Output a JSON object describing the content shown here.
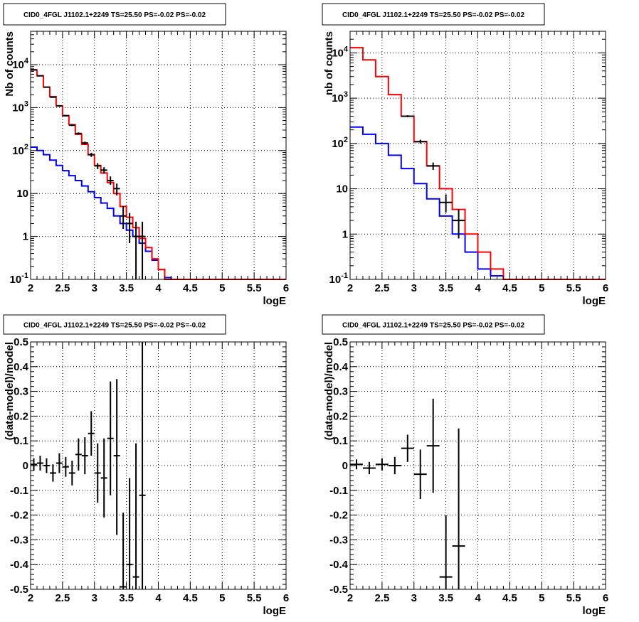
{
  "colors": {
    "data": "#000000",
    "total_model": "#ff0000",
    "component_model": "#0000ff",
    "grid": "#000000"
  },
  "chart_data": [
    {
      "type": "line",
      "title": "CID0_4FGL J1102.1+2249 TS=25.50 PS=-0.02 PS=-0.02",
      "xlabel": "logE",
      "ylabel": "Nb of counts",
      "xlim": [
        2,
        6
      ],
      "ylim": [
        0.1,
        60000
      ],
      "yscale": "log",
      "grid": true,
      "x_ticks": [
        "2",
        "2.5",
        "3",
        "3.5",
        "4",
        "4.5",
        "5",
        "5.5",
        "6"
      ],
      "y_ticks": [
        "10^-1",
        "1",
        "10",
        "10^2",
        "10^3",
        "10^4"
      ],
      "bin_edges": [
        2.0,
        2.1,
        2.2,
        2.3,
        2.4,
        2.5,
        2.6,
        2.7,
        2.8,
        2.9,
        3.0,
        3.1,
        3.2,
        3.3,
        3.4,
        3.5,
        3.6,
        3.7,
        3.8,
        3.9,
        4.0,
        4.1,
        4.2,
        4.3,
        4.4,
        4.5,
        4.6,
        4.7,
        4.8,
        4.9,
        5.0,
        5.1,
        5.2,
        5.3,
        5.4,
        5.5,
        5.6,
        5.7,
        5.8,
        5.9,
        6.0
      ],
      "series": [
        {
          "values": [
            7500,
            5500,
            3000,
            1800,
            1100,
            650,
            400,
            240,
            140,
            80,
            45,
            30,
            18,
            10,
            5,
            2.8,
            1.6,
            0.9,
            0.55,
            0.3,
            0.17,
            0.1,
            0.1,
            0.1,
            0.1,
            0.1,
            0.1,
            0.1,
            0.1,
            0.1,
            0.1,
            0.1,
            0.1,
            0.1,
            0.1,
            0.1,
            0.1,
            0.1,
            0.1,
            0.1
          ]
        },
        {
          "values": [
            120,
            100,
            80,
            60,
            45,
            34,
            26,
            20,
            15,
            11,
            8,
            6,
            4.5,
            3,
            2,
            1.4,
            1.0,
            0.7,
            0.45,
            0.28,
            0.17,
            0.11,
            0.1,
            0.1,
            0.1,
            0.1,
            0.1,
            0.1,
            0.1,
            0.1,
            0.1,
            0.1,
            0.1,
            0.1,
            0.1,
            0.1,
            0.1,
            0.1,
            0.1,
            0.1
          ]
        }
      ],
      "points": [
        {
          "x": 2.05,
          "y": 7600,
          "ylo": 7500,
          "yhi": 7700
        },
        {
          "x": 2.15,
          "y": 5500,
          "ylo": 5400,
          "yhi": 5600
        },
        {
          "x": 2.25,
          "y": 3000,
          "ylo": 2940,
          "yhi": 3060
        },
        {
          "x": 2.35,
          "y": 1750,
          "ylo": 1700,
          "yhi": 1800
        },
        {
          "x": 2.45,
          "y": 1100,
          "ylo": 1070,
          "yhi": 1130
        },
        {
          "x": 2.55,
          "y": 650,
          "ylo": 625,
          "yhi": 675
        },
        {
          "x": 2.65,
          "y": 390,
          "ylo": 370,
          "yhi": 410
        },
        {
          "x": 2.75,
          "y": 250,
          "ylo": 235,
          "yhi": 265
        },
        {
          "x": 2.85,
          "y": 150,
          "ylo": 138,
          "yhi": 162
        },
        {
          "x": 2.95,
          "y": 80,
          "ylo": 71,
          "yhi": 89
        },
        {
          "x": 3.05,
          "y": 44,
          "ylo": 37,
          "yhi": 51
        },
        {
          "x": 3.15,
          "y": 35,
          "ylo": 29,
          "yhi": 41
        },
        {
          "x": 3.25,
          "y": 20,
          "ylo": 16,
          "yhi": 25
        },
        {
          "x": 3.35,
          "y": 13,
          "ylo": 9,
          "yhi": 17
        },
        {
          "x": 3.45,
          "y": 3,
          "ylo": 1.5,
          "yhi": 5
        },
        {
          "x": 3.55,
          "y": 2,
          "ylo": 0.7,
          "yhi": 3.5
        },
        {
          "x": 3.65,
          "y": 1,
          "ylo": 0.1,
          "yhi": 2.2
        },
        {
          "x": 3.75,
          "y": 1,
          "ylo": 0.1,
          "yhi": 2.2
        }
      ]
    },
    {
      "type": "line",
      "title": "CID0_4FGL J1102.1+2249 TS=25.50 PS=-0.02 PS=-0.02",
      "xlabel": "logE",
      "ylabel": "nb of counts",
      "xlim": [
        2,
        6
      ],
      "ylim": [
        0.1,
        30000
      ],
      "yscale": "log",
      "grid": true,
      "x_ticks": [
        "2",
        "2.5",
        "3",
        "3.5",
        "4",
        "4.5",
        "5",
        "5.5",
        "6"
      ],
      "y_ticks": [
        "10^-1",
        "1",
        "10",
        "10^2",
        "10^3",
        "10^4"
      ],
      "bin_edges": [
        2.0,
        2.2,
        2.4,
        2.6,
        2.8,
        3.0,
        3.2,
        3.4,
        3.6,
        3.8,
        4.0,
        4.2,
        4.4,
        4.6,
        4.8,
        5.0,
        5.2,
        5.4,
        5.6,
        5.8,
        6.0
      ],
      "series": [
        {
          "values": [
            13000,
            7000,
            3000,
            1200,
            400,
            110,
            32,
            10,
            3.5,
            1.0,
            0.4,
            0.17,
            0.1,
            0.1,
            0.1,
            0.1,
            0.1,
            0.1,
            0.1,
            0.1
          ]
        },
        {
          "values": [
            230,
            160,
            100,
            55,
            28,
            13,
            6,
            2.5,
            1.0,
            0.4,
            0.17,
            0.12,
            0.1,
            0.1,
            0.1,
            0.1,
            0.1,
            0.1,
            0.1,
            0.1
          ]
        }
      ],
      "points": [
        {
          "x": 2.9,
          "y": 400,
          "ylo": 380,
          "yhi": 420
        },
        {
          "x": 3.1,
          "y": 110,
          "ylo": 100,
          "yhi": 121
        },
        {
          "x": 3.3,
          "y": 32,
          "ylo": 26,
          "yhi": 38
        },
        {
          "x": 3.5,
          "y": 5,
          "ylo": 3,
          "yhi": 7.5
        },
        {
          "x": 3.7,
          "y": 2,
          "ylo": 0.8,
          "yhi": 3.5
        }
      ]
    },
    {
      "type": "scatter",
      "title": "CID0_4FGL J1102.1+2249 TS=25.50 PS=-0.02 PS=-0.02",
      "xlabel": "logE",
      "ylabel": "(data-model)/model",
      "xlim": [
        2,
        6
      ],
      "ylim": [
        -0.5,
        0.5
      ],
      "grid": true,
      "x_ticks": [
        "2",
        "2.5",
        "3",
        "3.5",
        "4",
        "4.5",
        "5",
        "5.5",
        "6"
      ],
      "y_ticks": [
        "-0.5",
        "-0.4",
        "-0.3",
        "-0.2",
        "-0.1",
        "0",
        "0.1",
        "0.2",
        "0.3",
        "0.4",
        "0.5"
      ],
      "points": [
        {
          "x": 2.05,
          "y": 0.005,
          "ylo": -0.02,
          "yhi": 0.03,
          "xerr": 0.05
        },
        {
          "x": 2.15,
          "y": 0.01,
          "ylo": -0.02,
          "yhi": 0.04,
          "xerr": 0.05
        },
        {
          "x": 2.25,
          "y": 0.0,
          "ylo": -0.03,
          "yhi": 0.03,
          "xerr": 0.05
        },
        {
          "x": 2.35,
          "y": -0.03,
          "ylo": -0.065,
          "yhi": 0.005,
          "xerr": 0.05
        },
        {
          "x": 2.45,
          "y": 0.01,
          "ylo": -0.03,
          "yhi": 0.05,
          "xerr": 0.05
        },
        {
          "x": 2.55,
          "y": -0.005,
          "ylo": -0.045,
          "yhi": 0.035,
          "xerr": 0.05
        },
        {
          "x": 2.65,
          "y": -0.03,
          "ylo": -0.08,
          "yhi": 0.02,
          "xerr": 0.05
        },
        {
          "x": 2.75,
          "y": 0.045,
          "ylo": -0.02,
          "yhi": 0.11,
          "xerr": 0.05
        },
        {
          "x": 2.85,
          "y": 0.04,
          "ylo": -0.035,
          "yhi": 0.115,
          "xerr": 0.05
        },
        {
          "x": 2.95,
          "y": 0.13,
          "ylo": 0.04,
          "yhi": 0.22,
          "xerr": 0.05
        },
        {
          "x": 3.05,
          "y": -0.03,
          "ylo": -0.15,
          "yhi": 0.09,
          "xerr": 0.05
        },
        {
          "x": 3.15,
          "y": -0.05,
          "ylo": -0.21,
          "yhi": 0.11,
          "xerr": 0.05
        },
        {
          "x": 3.25,
          "y": 0.11,
          "ylo": -0.12,
          "yhi": 0.34,
          "xerr": 0.05
        },
        {
          "x": 3.35,
          "y": 0.04,
          "ylo": -0.28,
          "yhi": 0.35,
          "xerr": 0.05
        },
        {
          "x": 3.45,
          "y": -0.49,
          "ylo": -0.5,
          "yhi": -0.19,
          "xerr": 0.05
        },
        {
          "x": 3.55,
          "y": -0.4,
          "ylo": -0.5,
          "yhi": -0.05,
          "xerr": 0.05
        },
        {
          "x": 3.65,
          "y": -0.45,
          "ylo": -0.5,
          "yhi": 0.09,
          "xerr": 0.05
        },
        {
          "x": 3.75,
          "y": -0.12,
          "ylo": -0.5,
          "yhi": 0.5,
          "xerr": 0.05
        }
      ]
    },
    {
      "type": "scatter",
      "title": "CID0_4FGL J1102.1+2249 TS=25.50 PS=-0.02 PS=-0.02",
      "xlabel": "logE",
      "ylabel": "(data-model)/model",
      "xlim": [
        2,
        6
      ],
      "ylim": [
        -0.5,
        0.5
      ],
      "grid": true,
      "x_ticks": [
        "2",
        "2.5",
        "3",
        "3.5",
        "4",
        "4.5",
        "5",
        "5.5",
        "6"
      ],
      "y_ticks": [
        "-0.5",
        "-0.4",
        "-0.3",
        "-0.2",
        "-0.1",
        "0",
        "0.1",
        "0.2",
        "0.3",
        "0.4",
        "0.5"
      ],
      "points": [
        {
          "x": 2.1,
          "y": 0.005,
          "ylo": -0.015,
          "yhi": 0.025,
          "xerr": 0.1
        },
        {
          "x": 2.3,
          "y": -0.01,
          "ylo": -0.035,
          "yhi": 0.015,
          "xerr": 0.1
        },
        {
          "x": 2.5,
          "y": 0.005,
          "ylo": -0.02,
          "yhi": 0.03,
          "xerr": 0.1
        },
        {
          "x": 2.7,
          "y": 0.0,
          "ylo": -0.035,
          "yhi": 0.035,
          "xerr": 0.1
        },
        {
          "x": 2.9,
          "y": 0.07,
          "ylo": 0.015,
          "yhi": 0.125,
          "xerr": 0.1
        },
        {
          "x": 3.1,
          "y": -0.035,
          "ylo": -0.135,
          "yhi": 0.065,
          "xerr": 0.1
        },
        {
          "x": 3.3,
          "y": 0.08,
          "ylo": -0.11,
          "yhi": 0.27,
          "xerr": 0.1
        },
        {
          "x": 3.5,
          "y": -0.45,
          "ylo": -0.5,
          "yhi": -0.2,
          "xerr": 0.1
        },
        {
          "x": 3.7,
          "y": -0.325,
          "ylo": -0.5,
          "yhi": 0.15,
          "xerr": 0.1
        }
      ]
    }
  ]
}
